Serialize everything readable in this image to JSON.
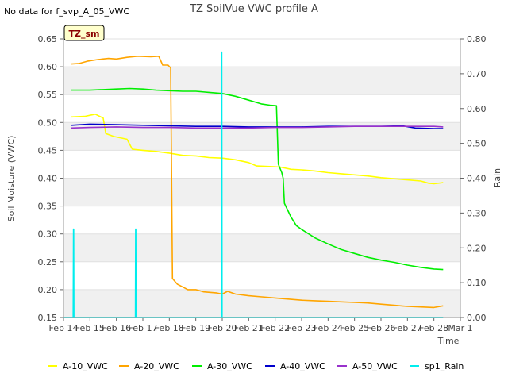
{
  "nodata_note": "No data for f_svp_A_05_VWC",
  "site_badge": "TZ_sm",
  "chart_data": {
    "type": "line",
    "title": "TZ SoilVue VWC profile A",
    "xlabel": "Time",
    "ylabel": "Soil Moisture (VWC)",
    "y2label": "Rain",
    "xlim": [
      0,
      15
    ],
    "ylim": [
      0.15,
      0.65
    ],
    "y2lim": [
      0.0,
      0.8
    ],
    "grid": "horizontal bands",
    "legend_position": "bottom",
    "x_ticks": [
      {
        "x": 0,
        "label": "Feb 14"
      },
      {
        "x": 1,
        "label": "Feb 15"
      },
      {
        "x": 2,
        "label": "Feb 16"
      },
      {
        "x": 3,
        "label": "Feb 17"
      },
      {
        "x": 4,
        "label": "Feb 18"
      },
      {
        "x": 5,
        "label": "Feb 19"
      },
      {
        "x": 6,
        "label": "Feb 20"
      },
      {
        "x": 7,
        "label": "Feb 21"
      },
      {
        "x": 8,
        "label": "Feb 22"
      },
      {
        "x": 9,
        "label": "Feb 23"
      },
      {
        "x": 10,
        "label": "Feb 24"
      },
      {
        "x": 11,
        "label": "Feb 25"
      },
      {
        "x": 12,
        "label": "Feb 26"
      },
      {
        "x": 13,
        "label": "Feb 27"
      },
      {
        "x": 14,
        "label": "Feb 28"
      },
      {
        "x": 15,
        "label": "Mar 1"
      }
    ],
    "y_ticks": [
      0.15,
      0.2,
      0.25,
      0.3,
      0.35,
      0.4,
      0.45,
      0.5,
      0.55,
      0.6,
      0.65
    ],
    "y2_ticks": [
      0.0,
      0.1,
      0.2,
      0.3,
      0.4,
      0.5,
      0.6,
      0.7,
      0.8
    ],
    "series": [
      {
        "name": "A-10_VWC",
        "color": "#ffff00",
        "axis": "left",
        "points": [
          [
            0.3,
            0.51
          ],
          [
            0.8,
            0.511
          ],
          [
            1.2,
            0.515
          ],
          [
            1.5,
            0.508
          ],
          [
            1.6,
            0.48
          ],
          [
            1.9,
            0.475
          ],
          [
            2.4,
            0.47
          ],
          [
            2.6,
            0.452
          ],
          [
            3.0,
            0.45
          ],
          [
            3.5,
            0.448
          ],
          [
            4.0,
            0.445
          ],
          [
            4.5,
            0.441
          ],
          [
            5.0,
            0.44
          ],
          [
            5.5,
            0.437
          ],
          [
            6.0,
            0.436
          ],
          [
            6.5,
            0.433
          ],
          [
            7.0,
            0.428
          ],
          [
            7.3,
            0.422
          ],
          [
            7.8,
            0.421
          ],
          [
            8.2,
            0.42
          ],
          [
            8.6,
            0.416
          ],
          [
            9.0,
            0.415
          ],
          [
            9.5,
            0.413
          ],
          [
            10.0,
            0.41
          ],
          [
            10.5,
            0.408
          ],
          [
            11.0,
            0.406
          ],
          [
            11.5,
            0.404
          ],
          [
            12.0,
            0.401
          ],
          [
            12.5,
            0.399
          ],
          [
            13.0,
            0.397
          ],
          [
            13.5,
            0.395
          ],
          [
            13.8,
            0.391
          ],
          [
            14.0,
            0.39
          ],
          [
            14.35,
            0.392
          ]
        ]
      },
      {
        "name": "A-20_VWC",
        "color": "#ffa500",
        "axis": "left",
        "points": [
          [
            0.3,
            0.605
          ],
          [
            0.6,
            0.606
          ],
          [
            0.9,
            0.61
          ],
          [
            1.3,
            0.613
          ],
          [
            1.7,
            0.615
          ],
          [
            2.0,
            0.614
          ],
          [
            2.4,
            0.617
          ],
          [
            2.8,
            0.619
          ],
          [
            3.3,
            0.618
          ],
          [
            3.6,
            0.619
          ],
          [
            3.75,
            0.603
          ],
          [
            3.95,
            0.603
          ],
          [
            4.05,
            0.598
          ],
          [
            4.12,
            0.22
          ],
          [
            4.3,
            0.21
          ],
          [
            4.7,
            0.2
          ],
          [
            5.0,
            0.2
          ],
          [
            5.3,
            0.196
          ],
          [
            5.8,
            0.194
          ],
          [
            6.0,
            0.192
          ],
          [
            6.2,
            0.197
          ],
          [
            6.5,
            0.192
          ],
          [
            7.0,
            0.189
          ],
          [
            7.5,
            0.187
          ],
          [
            8.0,
            0.185
          ],
          [
            8.5,
            0.183
          ],
          [
            9.0,
            0.181
          ],
          [
            9.5,
            0.18
          ],
          [
            10.0,
            0.179
          ],
          [
            10.5,
            0.178
          ],
          [
            11.0,
            0.177
          ],
          [
            11.5,
            0.176
          ],
          [
            12.0,
            0.174
          ],
          [
            12.5,
            0.172
          ],
          [
            13.0,
            0.17
          ],
          [
            13.5,
            0.169
          ],
          [
            14.0,
            0.168
          ],
          [
            14.35,
            0.171
          ]
        ]
      },
      {
        "name": "A-30_VWC",
        "color": "#00ee00",
        "axis": "left",
        "points": [
          [
            0.3,
            0.558
          ],
          [
            1.0,
            0.558
          ],
          [
            1.5,
            0.559
          ],
          [
            2.0,
            0.56
          ],
          [
            2.5,
            0.561
          ],
          [
            3.0,
            0.56
          ],
          [
            3.5,
            0.558
          ],
          [
            4.0,
            0.557
          ],
          [
            4.5,
            0.556
          ],
          [
            5.0,
            0.556
          ],
          [
            5.5,
            0.554
          ],
          [
            6.0,
            0.552
          ],
          [
            6.5,
            0.547
          ],
          [
            7.0,
            0.54
          ],
          [
            7.5,
            0.533
          ],
          [
            7.8,
            0.531
          ],
          [
            8.05,
            0.53
          ],
          [
            8.12,
            0.425
          ],
          [
            8.25,
            0.41
          ],
          [
            8.3,
            0.4
          ],
          [
            8.35,
            0.355
          ],
          [
            8.6,
            0.33
          ],
          [
            8.8,
            0.315
          ],
          [
            9.0,
            0.308
          ],
          [
            9.5,
            0.293
          ],
          [
            10.0,
            0.282
          ],
          [
            10.5,
            0.272
          ],
          [
            11.0,
            0.265
          ],
          [
            11.5,
            0.258
          ],
          [
            12.0,
            0.253
          ],
          [
            12.5,
            0.249
          ],
          [
            13.0,
            0.244
          ],
          [
            13.5,
            0.24
          ],
          [
            14.0,
            0.237
          ],
          [
            14.35,
            0.236
          ]
        ]
      },
      {
        "name": "A-40_VWC",
        "color": "#0000cc",
        "axis": "left",
        "points": [
          [
            0.3,
            0.495
          ],
          [
            1.0,
            0.497
          ],
          [
            2.0,
            0.496
          ],
          [
            3.0,
            0.495
          ],
          [
            4.0,
            0.494
          ],
          [
            5.0,
            0.493
          ],
          [
            6.0,
            0.493
          ],
          [
            7.0,
            0.492
          ],
          [
            8.0,
            0.492
          ],
          [
            9.0,
            0.492
          ],
          [
            10.0,
            0.493
          ],
          [
            11.0,
            0.493
          ],
          [
            12.0,
            0.493
          ],
          [
            12.8,
            0.494
          ],
          [
            13.3,
            0.49
          ],
          [
            14.0,
            0.489
          ],
          [
            14.35,
            0.489
          ]
        ]
      },
      {
        "name": "A-50_VWC",
        "color": "#9932cc",
        "axis": "left",
        "points": [
          [
            0.3,
            0.49
          ],
          [
            1.0,
            0.491
          ],
          [
            2.0,
            0.492
          ],
          [
            3.0,
            0.491
          ],
          [
            4.0,
            0.491
          ],
          [
            5.0,
            0.49
          ],
          [
            6.0,
            0.49
          ],
          [
            7.0,
            0.49
          ],
          [
            8.0,
            0.491
          ],
          [
            9.0,
            0.491
          ],
          [
            10.0,
            0.492
          ],
          [
            11.0,
            0.493
          ],
          [
            12.0,
            0.493
          ],
          [
            13.0,
            0.493
          ],
          [
            14.0,
            0.493
          ],
          [
            14.35,
            0.492
          ]
        ]
      },
      {
        "name": "sp1_Rain",
        "color": "#00eeee",
        "axis": "right",
        "points": [
          [
            0.0,
            0.0
          ],
          [
            0.37,
            0.0
          ],
          [
            0.38,
            0.254
          ],
          [
            0.39,
            0.0
          ],
          [
            2.72,
            0.0
          ],
          [
            2.73,
            0.254
          ],
          [
            2.74,
            0.0
          ],
          [
            5.97,
            0.0
          ],
          [
            5.98,
            0.762
          ],
          [
            5.99,
            0.0
          ],
          [
            14.35,
            0.0
          ]
        ]
      }
    ]
  }
}
